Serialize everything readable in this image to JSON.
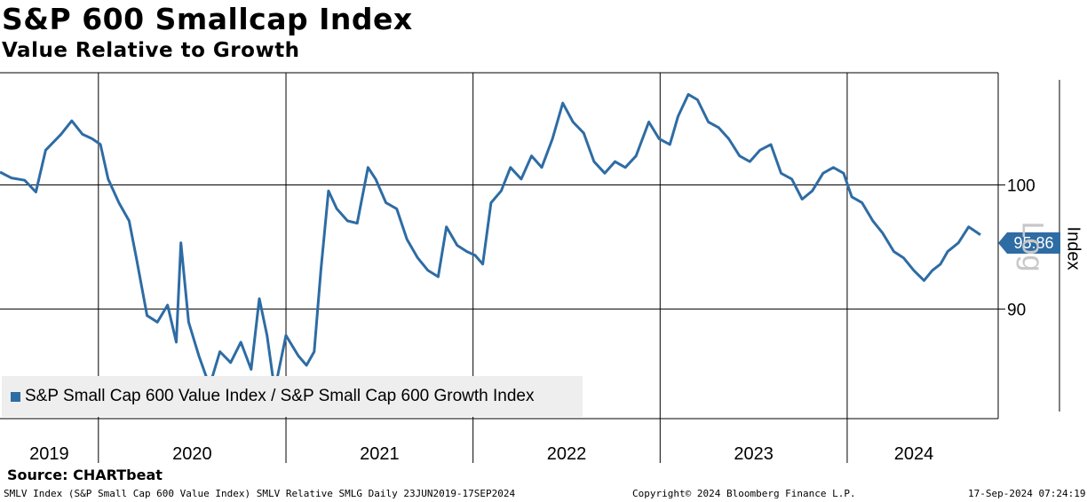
{
  "header": {
    "title": "S&P 600 Smallcap Index",
    "subtitle": "Value Relative to Growth"
  },
  "source": "Source: CHARTbeat",
  "footer": {
    "left": "SMLV Index (S&P Small Cap 600 Value Index) SMLV Relative SMLG  Daily 23JUN2019-17SEP2024",
    "center": "Copyright© 2024 Bloomberg Finance L.P.",
    "right": "17-Sep-2024 07:24:19"
  },
  "colors": {
    "series": "#2e6ca4",
    "legend_bg": "#eeeeee"
  },
  "chart_data": {
    "type": "line",
    "x_tick_labels": [
      "2019",
      "2020",
      "2021",
      "2022",
      "2023",
      "2024"
    ],
    "y_tick_labels": [
      "100",
      "90"
    ],
    "y_ticks": [
      100,
      90
    ],
    "y_scale": "log",
    "y_axis_title": "Index",
    "y_scale_label": "Log",
    "ylim": [
      82,
      110
    ],
    "xlim": [
      "2019-06-23",
      "2024-09-17"
    ],
    "grid": true,
    "legend_position": "bottom-left",
    "last_value_label": "95.86",
    "series": [
      {
        "name": "S&P Small Cap 600 Value Index / S&P Small Cap 600 Growth Index",
        "points": [
          [
            "2019-06-23",
            101.1
          ],
          [
            "2019-07-15",
            100.6
          ],
          [
            "2019-08-10",
            100.4
          ],
          [
            "2019-09-01",
            99.4
          ],
          [
            "2019-09-20",
            103.0
          ],
          [
            "2019-10-20",
            104.4
          ],
          [
            "2019-11-10",
            105.6
          ],
          [
            "2019-12-01",
            104.4
          ],
          [
            "2019-12-20",
            104.0
          ],
          [
            "2020-01-05",
            103.5
          ],
          [
            "2020-01-20",
            100.5
          ],
          [
            "2020-02-10",
            98.5
          ],
          [
            "2020-03-01",
            97.0
          ],
          [
            "2020-03-15",
            94.0
          ],
          [
            "2020-04-05",
            89.5
          ],
          [
            "2020-04-25",
            89.0
          ],
          [
            "2020-05-15",
            90.3
          ],
          [
            "2020-06-01",
            87.5
          ],
          [
            "2020-06-10",
            95.2
          ],
          [
            "2020-06-25",
            89.0
          ],
          [
            "2020-07-15",
            86.5
          ],
          [
            "2020-08-05",
            84.3
          ],
          [
            "2020-08-25",
            86.8
          ],
          [
            "2020-09-15",
            86.0
          ],
          [
            "2020-10-05",
            87.5
          ],
          [
            "2020-10-25",
            85.5
          ],
          [
            "2020-11-10",
            90.8
          ],
          [
            "2020-11-25",
            88.0
          ],
          [
            "2020-12-10",
            84.0
          ],
          [
            "2021-01-01",
            88.0
          ],
          [
            "2021-01-25",
            86.5
          ],
          [
            "2021-02-10",
            85.8
          ],
          [
            "2021-02-25",
            86.8
          ],
          [
            "2021-03-10",
            93.0
          ],
          [
            "2021-03-25",
            99.5
          ],
          [
            "2021-04-10",
            98.0
          ],
          [
            "2021-05-01",
            97.0
          ],
          [
            "2021-05-20",
            96.8
          ],
          [
            "2021-06-10",
            101.5
          ],
          [
            "2021-06-25",
            100.5
          ],
          [
            "2021-07-15",
            98.5
          ],
          [
            "2021-08-05",
            98.0
          ],
          [
            "2021-08-25",
            95.5
          ],
          [
            "2021-09-15",
            94.0
          ],
          [
            "2021-10-05",
            93.0
          ],
          [
            "2021-10-25",
            92.5
          ],
          [
            "2021-11-10",
            96.5
          ],
          [
            "2021-12-01",
            95.0
          ],
          [
            "2021-12-20",
            94.5
          ],
          [
            "2022-01-05",
            94.2
          ],
          [
            "2022-01-20",
            93.5
          ],
          [
            "2022-02-05",
            98.5
          ],
          [
            "2022-02-25",
            99.5
          ],
          [
            "2022-03-15",
            101.5
          ],
          [
            "2022-04-05",
            100.5
          ],
          [
            "2022-04-25",
            102.5
          ],
          [
            "2022-05-15",
            101.5
          ],
          [
            "2022-06-05",
            104.0
          ],
          [
            "2022-06-25",
            107.2
          ],
          [
            "2022-07-15",
            105.5
          ],
          [
            "2022-08-05",
            104.5
          ],
          [
            "2022-08-25",
            102.0
          ],
          [
            "2022-09-15",
            101.0
          ],
          [
            "2022-10-05",
            102.0
          ],
          [
            "2022-10-25",
            101.5
          ],
          [
            "2022-11-15",
            102.5
          ],
          [
            "2022-12-10",
            105.5
          ],
          [
            "2022-12-30",
            104.0
          ],
          [
            "2023-01-20",
            103.5
          ],
          [
            "2023-02-05",
            106.0
          ],
          [
            "2023-02-25",
            108.0
          ],
          [
            "2023-03-15",
            107.5
          ],
          [
            "2023-04-05",
            105.5
          ],
          [
            "2023-04-25",
            105.0
          ],
          [
            "2023-05-15",
            104.0
          ],
          [
            "2023-06-05",
            102.5
          ],
          [
            "2023-06-25",
            102.0
          ],
          [
            "2023-07-15",
            103.0
          ],
          [
            "2023-08-05",
            103.5
          ],
          [
            "2023-08-25",
            101.0
          ],
          [
            "2023-09-15",
            100.5
          ],
          [
            "2023-10-05",
            98.8
          ],
          [
            "2023-10-25",
            99.5
          ],
          [
            "2023-11-15",
            101.0
          ],
          [
            "2023-12-05",
            101.5
          ],
          [
            "2023-12-25",
            101.0
          ],
          [
            "2024-01-10",
            99.0
          ],
          [
            "2024-01-30",
            98.5
          ],
          [
            "2024-02-20",
            97.0
          ],
          [
            "2024-03-10",
            96.0
          ],
          [
            "2024-04-01",
            94.5
          ],
          [
            "2024-04-20",
            94.0
          ],
          [
            "2024-05-10",
            93.0
          ],
          [
            "2024-05-30",
            92.2
          ],
          [
            "2024-06-15",
            93.0
          ],
          [
            "2024-07-01",
            93.5
          ],
          [
            "2024-07-15",
            94.5
          ],
          [
            "2024-08-05",
            95.2
          ],
          [
            "2024-08-25",
            96.5
          ],
          [
            "2024-09-17",
            95.86
          ]
        ]
      }
    ]
  }
}
